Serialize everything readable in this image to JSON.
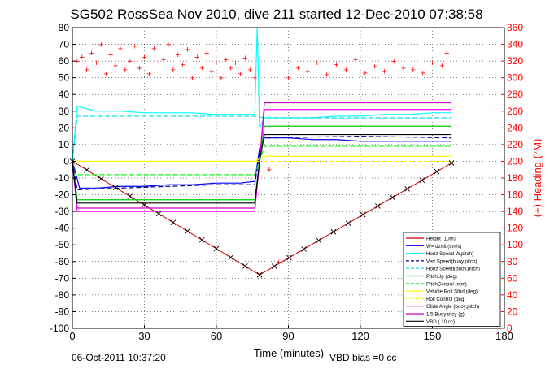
{
  "chart_data": {
    "type": "line",
    "title": "SG502 RossSea Nov 2010, dive 211 started 12-Dec-2010 07:38:58",
    "xlabel": "Time (minutes)",
    "ylabel_right": "(+) Heading (°M)",
    "xlim": [
      0,
      180
    ],
    "ylim": [
      -100,
      80
    ],
    "ylim_right": [
      0,
      360
    ],
    "xticks": [
      0,
      30,
      60,
      90,
      120,
      150,
      180
    ],
    "yticks": [
      80,
      70,
      60,
      50,
      40,
      30,
      20,
      10,
      0,
      -10,
      -20,
      -30,
      -40,
      -50,
      -60,
      -70,
      -80,
      -90,
      -100
    ],
    "yticks_right": [
      360,
      340,
      320,
      300,
      280,
      260,
      240,
      220,
      200,
      180,
      160,
      140,
      120,
      100,
      80,
      60,
      40,
      20,
      0
    ],
    "grid": true,
    "legend_position": "bottom-right",
    "footer_left": "06-Oct-2011 10:37:20",
    "footer_right": "VBD bias =0 cc",
    "colors": {
      "depth": "#000000",
      "w": "#0000ff",
      "horiz_w": "#00ffff",
      "vert_buoy": "#00008b",
      "horiz_buoy": "#00e0e0",
      "pitch_up": "#00cc00",
      "pitch_control": "#00ff00",
      "roll_obs": "#ffff00",
      "roll_control": "#ffff00",
      "glide": "#ff00ff",
      "buoyancy": "#cc00cc",
      "vbd": "#000000",
      "heading": "#ff0000",
      "height": "#cc0000"
    },
    "series": [
      {
        "name": "Height (10m)",
        "key": "height",
        "x": [
          0,
          78,
          158
        ],
        "values": [
          0,
          -68,
          -1
        ]
      },
      {
        "name": "W= dz/dt (cm/s)",
        "key": "w",
        "x": [
          0,
          1,
          3,
          10,
          20,
          30,
          40,
          50,
          60,
          70,
          76,
          78,
          80,
          90,
          100,
          110,
          120,
          130,
          140,
          150,
          158
        ],
        "values": [
          0,
          -5,
          -16,
          -16,
          -15,
          -15,
          -14,
          -14,
          -13,
          -13,
          -12,
          8,
          14,
          14,
          13,
          13,
          12,
          12,
          12,
          12,
          12
        ]
      },
      {
        "name": "Horiz Speed W,pitch)",
        "key": "horiz_w",
        "x": [
          0,
          2,
          10,
          20,
          30,
          40,
          50,
          60,
          70,
          76,
          77,
          78,
          80,
          90,
          100,
          110,
          120,
          130,
          140,
          150,
          158
        ],
        "values": [
          0,
          33,
          30,
          30,
          29,
          29,
          29,
          28,
          28,
          28,
          80,
          20,
          26,
          26,
          26,
          27,
          27,
          28,
          28,
          29,
          29
        ]
      },
      {
        "name": "Vert Speed(buoy,pitch)",
        "key": "vert_buoy",
        "x": [
          0,
          2,
          20,
          40,
          60,
          76,
          78,
          80,
          120,
          158
        ],
        "values": [
          0,
          -17,
          -16,
          -15,
          -14,
          -14,
          5,
          14,
          15,
          14
        ]
      },
      {
        "name": "Horiz Speed(buoy,pitch)",
        "key": "horiz_buoy",
        "x": [
          0,
          2,
          76,
          80,
          158
        ],
        "values": [
          0,
          27,
          27,
          26,
          26
        ]
      },
      {
        "name": "PitchUp (deg)",
        "key": "pitch_up",
        "x": [
          0,
          2,
          76,
          78,
          80,
          158
        ],
        "values": [
          0,
          -23,
          -23,
          0,
          21,
          21
        ]
      },
      {
        "name": "PitchControl (mm)",
        "key": "pitch_control",
        "x": [
          0,
          2,
          76,
          78,
          80,
          158
        ],
        "values": [
          0,
          -8,
          -8,
          0,
          9,
          9
        ]
      },
      {
        "name": "Vehicle Roll Stbd (deg)",
        "key": "roll_obs",
        "x": [
          0,
          2,
          76,
          80,
          158
        ],
        "values": [
          0,
          0,
          0,
          3,
          3
        ]
      },
      {
        "name": "Roll Control (deg)",
        "key": "roll_control",
        "x": [
          0,
          158
        ],
        "values": [
          0,
          0
        ]
      },
      {
        "name": "Glide Angle (buoy,pitch)",
        "key": "glide",
        "x": [
          0,
          2,
          76,
          78,
          80,
          158
        ],
        "values": [
          0,
          -30,
          -30,
          0,
          31,
          31
        ]
      },
      {
        "name": "1/5 Buoyancy (g)",
        "key": "buoyancy",
        "x": [
          0,
          2,
          76,
          78,
          80,
          158
        ],
        "values": [
          0,
          -28,
          -28,
          0,
          35,
          35
        ]
      },
      {
        "name": "VBD ( 10 cc)",
        "key": "vbd",
        "x": [
          0,
          2,
          76,
          78,
          80,
          158
        ],
        "values": [
          0,
          -25,
          -25,
          0,
          16,
          16
        ]
      }
    ],
    "heading_points": {
      "name": "Heading (°M)",
      "x": [
        2,
        4,
        6,
        8,
        10,
        12,
        14,
        16,
        18,
        20,
        22,
        24,
        26,
        28,
        30,
        32,
        34,
        36,
        38,
        40,
        42,
        44,
        46,
        48,
        50,
        52,
        54,
        56,
        58,
        60,
        62,
        64,
        66,
        68,
        70,
        72,
        74,
        76,
        82,
        86,
        90,
        94,
        98,
        102,
        106,
        110,
        114,
        118,
        122,
        126,
        130,
        134,
        138,
        142,
        146,
        150,
        154,
        156
      ],
      "values": [
        320,
        325,
        310,
        330,
        318,
        340,
        305,
        328,
        315,
        335,
        310,
        320,
        338,
        312,
        325,
        305,
        335,
        318,
        322,
        340,
        310,
        328,
        316,
        334,
        300,
        325,
        312,
        330,
        308,
        318,
        300,
        322,
        312,
        318,
        305,
        324,
        310,
        300,
        190,
        80,
        300,
        312,
        308,
        318,
        304,
        316,
        310,
        322,
        306,
        314,
        308,
        320,
        312,
        310,
        306,
        318,
        315,
        330
      ]
    }
  }
}
